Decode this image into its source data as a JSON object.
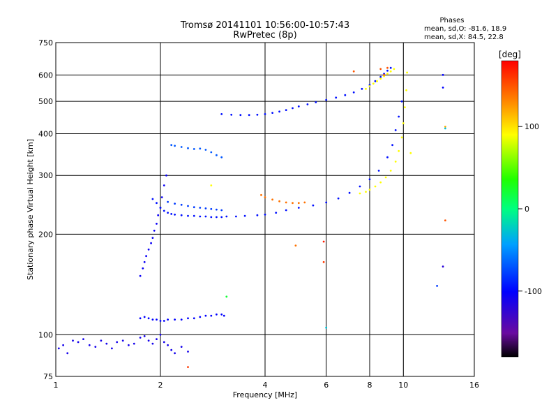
{
  "chart_data": {
    "type": "scatter",
    "title": "Tromsø 20141101 10:56:00-10:57:43",
    "subtitle": "RwPretec (8p)",
    "phases_note": {
      "heading": "Phases",
      "line_o": "mean, sd,O: -81.6, 18.9",
      "line_x": "mean, sd,X: 84.5, 22.8"
    },
    "xlabel": "Frequency [MHz]",
    "ylabel": "Stationary phase Virtual Height [km]",
    "x_scale": "log",
    "y_scale": "log",
    "xlim": [
      1,
      16
    ],
    "ylim": [
      75,
      750
    ],
    "x_ticks": [
      1,
      2,
      4,
      6,
      8,
      10,
      16
    ],
    "x_tick_labels": [
      "1",
      "2",
      "4",
      "6",
      "8",
      "10",
      "16"
    ],
    "y_ticks": [
      75,
      100,
      200,
      300,
      400,
      500,
      600,
      750
    ],
    "y_tick_labels": [
      "75",
      "100",
      "200",
      "300",
      "400",
      "500",
      "600",
      "750"
    ],
    "grid": true,
    "colorbar": {
      "label": "[deg]",
      "range": [
        -180,
        180
      ],
      "ticks": [
        100,
        0,
        -100
      ],
      "tick_labels": [
        "100",
        "0",
        "-100"
      ]
    },
    "series": [
      {
        "values_x": [
          1.02,
          1.05,
          1.08,
          1.12,
          1.16,
          1.2,
          1.25,
          1.3,
          1.35,
          1.4,
          1.45,
          1.5,
          1.56,
          1.62,
          1.68,
          1.75,
          1.8,
          1.85,
          1.9,
          1.95,
          2.0,
          2.05,
          2.1,
          2.15,
          2.2,
          2.3,
          2.4
        ],
        "values_y": [
          91,
          93,
          88,
          96,
          95,
          97,
          93,
          92,
          96,
          94,
          91,
          95,
          96,
          93,
          94,
          98,
          99,
          96,
          94,
          97,
          100,
          95,
          93,
          90,
          88,
          92,
          89
        ],
        "phase": -110
      },
      {
        "values_x": [
          1.75,
          1.8,
          1.85,
          1.9,
          1.95,
          2.0,
          2.05,
          2.1,
          2.2,
          2.3,
          2.4,
          2.5,
          2.6,
          2.7,
          2.8,
          2.9,
          3.0,
          3.05
        ],
        "values_y": [
          112,
          113,
          112,
          111,
          111,
          110,
          110,
          111,
          111,
          111,
          112,
          112,
          113,
          114,
          114,
          115,
          115,
          114
        ],
        "phase": -100
      },
      {
        "values_x": [
          1.75,
          1.78,
          1.8,
          1.82,
          1.85,
          1.88,
          1.9,
          1.92,
          1.95,
          1.97,
          2.0,
          2.02,
          2.05,
          2.08
        ],
        "values_y": [
          150,
          158,
          165,
          172,
          180,
          188,
          195,
          205,
          215,
          228,
          240,
          258,
          280,
          300
        ],
        "phase": -105
      },
      {
        "values_x": [
          1.9,
          1.95,
          2.0,
          2.05,
          2.1,
          2.15,
          2.2,
          2.3,
          2.4,
          2.5,
          2.6,
          2.7,
          2.8,
          2.9,
          3.0,
          3.1,
          3.3,
          3.5,
          3.8,
          4.0,
          4.3,
          4.6,
          5.0,
          5.5,
          6.0,
          6.5,
          7.0,
          7.5,
          8.0,
          8.5,
          9.0,
          9.3,
          9.5,
          9.7,
          9.9
        ],
        "values_y": [
          255,
          248,
          240,
          235,
          232,
          230,
          229,
          228,
          227,
          227,
          226,
          226,
          225,
          225,
          225,
          226,
          226,
          227,
          228,
          229,
          232,
          236,
          240,
          244,
          249,
          256,
          266,
          278,
          292,
          310,
          340,
          370,
          410,
          450,
          500
        ],
        "phase": -95
      },
      {
        "values_x": [
          2.1,
          2.2,
          2.3,
          2.4,
          2.5,
          2.6,
          2.7,
          2.8,
          2.9,
          3.0
        ],
        "values_y": [
          250,
          247,
          245,
          243,
          241,
          240,
          239,
          238,
          237,
          236
        ],
        "phase": -80
      },
      {
        "values_x": [
          3.9,
          4.0,
          4.2,
          4.4,
          4.6,
          4.8,
          5.0,
          5.2
        ],
        "values_y": [
          262,
          258,
          254,
          251,
          249,
          248,
          248,
          249
        ],
        "phase": 140
      },
      {
        "values_x": [
          7.5,
          7.8,
          8.0,
          8.3,
          8.6,
          8.9,
          9.2,
          9.5,
          9.7,
          9.9,
          10.0,
          10.1,
          10.2,
          10.25
        ],
        "values_y": [
          265,
          268,
          272,
          278,
          286,
          296,
          310,
          330,
          355,
          390,
          430,
          480,
          540,
          610
        ],
        "phase": 90
      },
      {
        "values_x": [
          2.15,
          2.2,
          2.3,
          2.4,
          2.5,
          2.6,
          2.7,
          2.8,
          2.9,
          3.0
        ],
        "values_y": [
          370,
          368,
          365,
          362,
          360,
          361,
          358,
          352,
          345,
          340
        ],
        "phase": -70
      },
      {
        "values_x": [
          3.0,
          3.2,
          3.4,
          3.6,
          3.8,
          4.0,
          4.2,
          4.4,
          4.6,
          4.8,
          5.0,
          5.3,
          5.6,
          6.0,
          6.4,
          6.8,
          7.2,
          7.6,
          8.0,
          8.3,
          8.6,
          8.8,
          9.0,
          9.2
        ],
        "values_y": [
          458,
          456,
          455,
          455,
          456,
          458,
          462,
          466,
          471,
          477,
          483,
          490,
          497,
          505,
          513,
          522,
          532,
          545,
          560,
          575,
          592,
          605,
          618,
          630
        ],
        "phase": -95
      },
      {
        "values_x": [
          7.8,
          8.0,
          8.2,
          8.4,
          8.6,
          8.8,
          9.0,
          9.2,
          9.4
        ],
        "values_y": [
          545,
          555,
          565,
          575,
          585,
          595,
          605,
          615,
          625
        ],
        "phase": 90
      },
      {
        "values_x": [
          7.2,
          8.6,
          8.8,
          9.0
        ],
        "values_y": [
          615,
          625,
          600,
          630
        ],
        "phase": 150
      }
    ],
    "scattered_points": {
      "values_x": [
        2.8,
        3.1,
        4.9,
        5.9,
        5.9,
        6.0,
        2.4,
        13.0,
        13.0,
        13.2,
        13.2,
        13.2,
        13.0,
        12.5,
        10.5
      ],
      "values_y": [
        280,
        130,
        185,
        190,
        165,
        105,
        80,
        600,
        550,
        420,
        415,
        220,
        160,
        140,
        350
      ],
      "phase": [
        90,
        20,
        140,
        170,
        160,
        -30,
        160,
        -100,
        -100,
        120,
        -30,
        150,
        -120,
        -80,
        90
      ]
    }
  }
}
